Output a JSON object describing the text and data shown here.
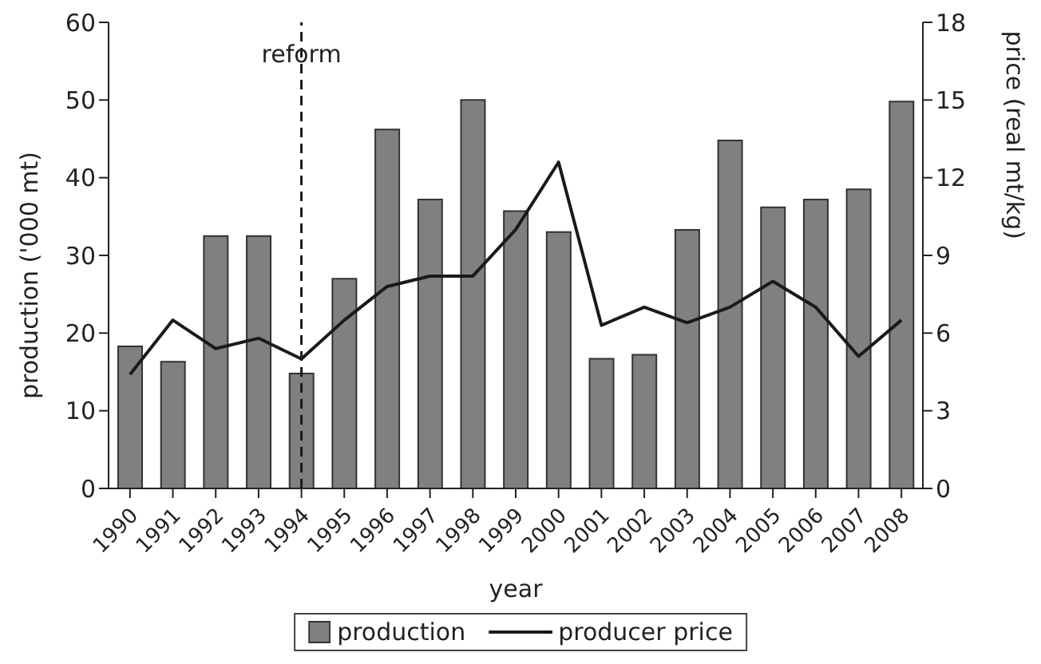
{
  "chart_data": {
    "type": "bar",
    "xlabel": "year",
    "ylabel": "production ('000 mt)",
    "y2label": "price (real mt/kg)",
    "categories": [
      "1990",
      "1991",
      "1992",
      "1993",
      "1994",
      "1995",
      "1996",
      "1997",
      "1998",
      "1999",
      "2000",
      "2001",
      "2002",
      "2003",
      "2004",
      "2005",
      "2006",
      "2007",
      "2008"
    ],
    "series": [
      {
        "name": "production",
        "color": "#808080",
        "values": [
          18.3,
          16.3,
          32.5,
          32.5,
          14.8,
          27,
          46.2,
          37.2,
          50,
          35.7,
          33,
          16.7,
          17.2,
          33.3,
          44.8,
          36.2,
          37.2,
          38.5,
          49.8
        ]
      },
      {
        "name": "producer price",
        "type": "line",
        "axis": "y2",
        "color": "#1a1a1a",
        "values": [
          4.4,
          6.5,
          5.4,
          5.8,
          5.0,
          6.5,
          7.8,
          8.2,
          8.2,
          10,
          12.6,
          6.3,
          7.0,
          6.4,
          7.0,
          8.0,
          7.0,
          5.1,
          6.5
        ]
      }
    ],
    "ylim": [
      0,
      60
    ],
    "yticks": [
      0,
      10,
      20,
      30,
      40,
      50,
      60
    ],
    "y2lim": [
      0,
      18
    ],
    "y2ticks": [
      0,
      3,
      6,
      9,
      12,
      15,
      18
    ],
    "ref_lines": [
      {
        "axis": "x",
        "value": "1994",
        "label": "reform",
        "line_style": "dashed",
        "color": "#1a1a1a"
      }
    ],
    "grid": false,
    "legend": "bottom",
    "marker": "none"
  }
}
